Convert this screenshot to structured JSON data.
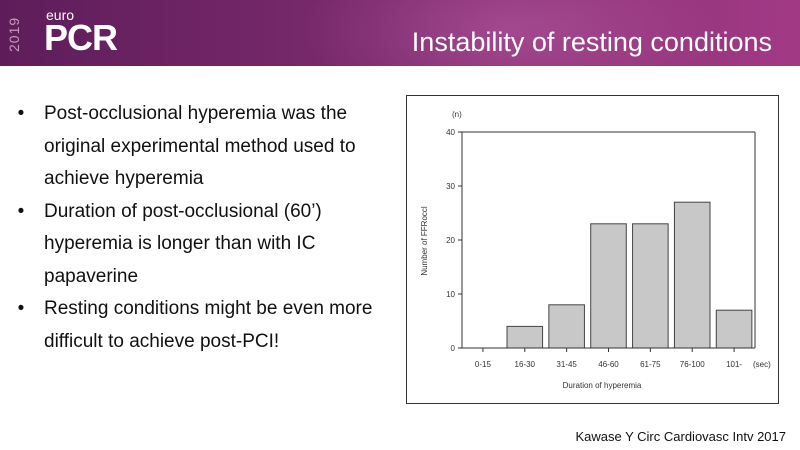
{
  "header": {
    "year": "2019",
    "logo_small": "euro",
    "logo_big": "PCR",
    "title": "Instability of resting conditions",
    "colors": {
      "from": "#5e1d5a",
      "to": "#a23a86"
    }
  },
  "bullets": [
    "Post-occlusional hyperemia was the original experimental method used to achieve hyperemia",
    "Duration of post-occlusional (60’) hyperemia is longer than with IC papaverine",
    "Resting conditions might be even more difficult to achieve post-PCI!"
  ],
  "bullet_marker": "•",
  "citation": "Kawase Y Circ Cardiovasc Intv 2017",
  "chart_data": {
    "type": "bar",
    "categories": [
      "0-15",
      "16-30",
      "31-45",
      "46-60",
      "61-75",
      "76-100",
      "101-"
    ],
    "values": [
      0,
      4,
      8,
      23,
      23,
      27,
      7
    ],
    "xlabel": "Duration of hyperemia",
    "ylabel": "Number of FFRoccl",
    "y_unit": "(n)",
    "x_unit": "(sec)",
    "ylim": [
      0,
      40
    ],
    "yticks": [
      0,
      10,
      20,
      30,
      40
    ],
    "grid": false,
    "bar_color": "#c8c8c8"
  }
}
